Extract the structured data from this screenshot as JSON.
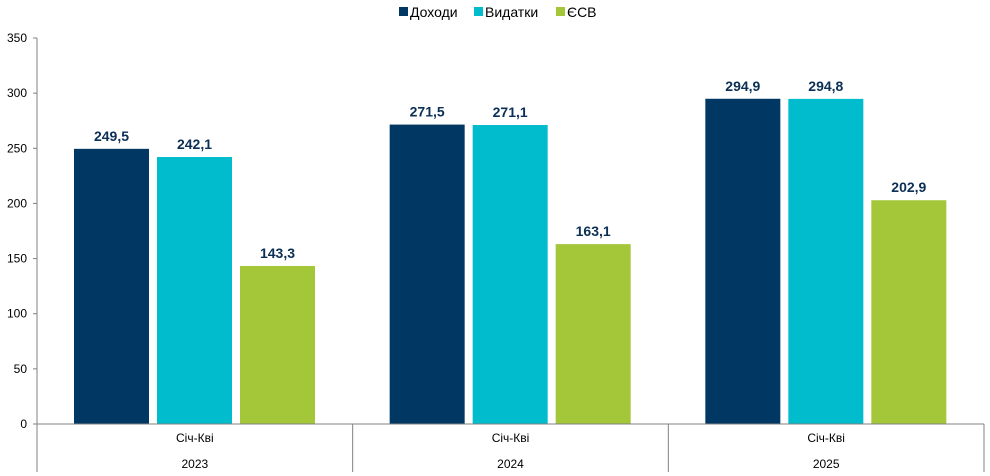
{
  "chart_data": {
    "type": "bar",
    "title": "",
    "xlabel": "",
    "ylabel": "",
    "ylim": [
      0,
      350
    ],
    "yticks": [
      0,
      50,
      100,
      150,
      200,
      250,
      300,
      350
    ],
    "grid": false,
    "legend_position": "top-center",
    "categories": [
      {
        "label": "Січ-Кві",
        "year": "2023"
      },
      {
        "label": "Січ-Кві",
        "year": "2024"
      },
      {
        "label": "Січ-Кві",
        "year": "2025"
      }
    ],
    "series": [
      {
        "name": "Доходи",
        "color": "#003763",
        "values": [
          249.5,
          271.5,
          294.9
        ],
        "labels": [
          "249,5",
          "271,5",
          "294,9"
        ]
      },
      {
        "name": "Видатки",
        "color": "#00bccc",
        "values": [
          242.1,
          271.1,
          294.8
        ],
        "labels": [
          "242,1",
          "271,1",
          "294,8"
        ]
      },
      {
        "name": "ЄСВ",
        "color": "#a4c639",
        "values": [
          143.3,
          163.1,
          202.9
        ],
        "labels": [
          "143,3",
          "163,1",
          "202,9"
        ]
      }
    ]
  }
}
